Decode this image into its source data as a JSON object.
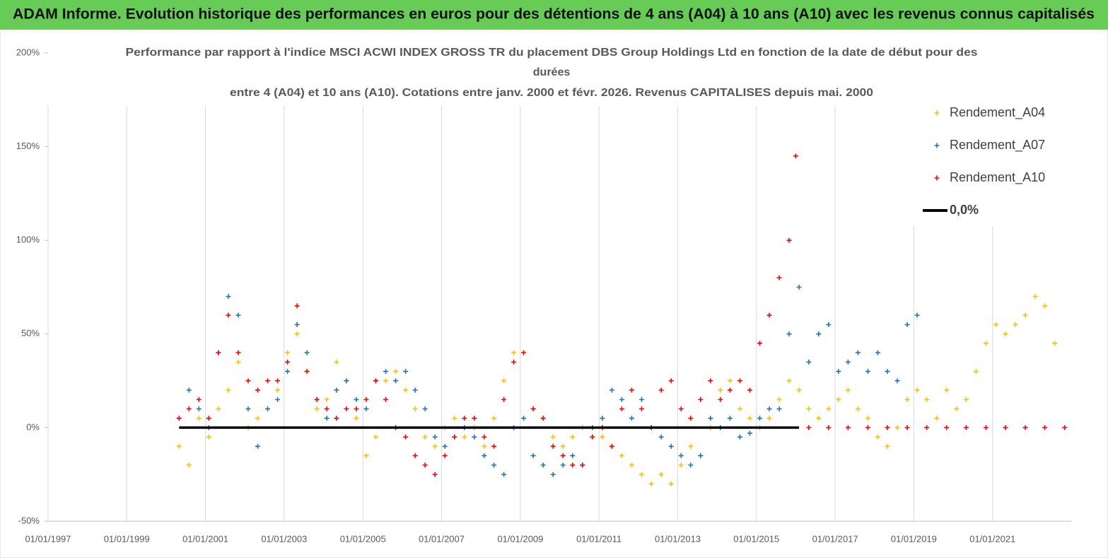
{
  "chart_data": {
    "type": "scatter",
    "title": "ADAM Informe. Evolution historique des performances en euros pour des détentions de 4 ans (A04) à 10 ans (A10) avec les revenus connus capitalisés",
    "subtitle": [
      "Performance par rapport à l'indice MSCI ACWI INDEX GROSS TR  du placement DBS Group Holdings Ltd en fonction de la date de début pour des",
      "durées",
      "entre 4 (A04) et 10 ans (A10). Cotations entre janv. 2000 et févr. 2026. Revenus CAPITALISES depuis mai. 2000"
    ],
    "xlim": [
      "1997-01-01",
      "2023-01-01"
    ],
    "xticks": [
      {
        "value": "1997-01-01",
        "label": "01/01/1997"
      },
      {
        "value": "1999-01-01",
        "label": "01/01/1999"
      },
      {
        "value": "2001-01-01",
        "label": "01/01/2001"
      },
      {
        "value": "2003-01-01",
        "label": "01/01/2003"
      },
      {
        "value": "2005-01-01",
        "label": "01/01/2005"
      },
      {
        "value": "2007-01-01",
        "label": "01/01/2007"
      },
      {
        "value": "2009-01-01",
        "label": "01/01/2009"
      },
      {
        "value": "2011-01-01",
        "label": "01/01/2011"
      },
      {
        "value": "2013-01-01",
        "label": "01/01/2013"
      },
      {
        "value": "2015-01-01",
        "label": "01/01/2015"
      },
      {
        "value": "2017-01-01",
        "label": "01/01/2017"
      },
      {
        "value": "2019-01-01",
        "label": "01/01/2019"
      },
      {
        "value": "2021-01-01",
        "label": "01/01/2021"
      }
    ],
    "ylim": [
      -50,
      200
    ],
    "yticks": [
      {
        "value": -50,
        "label": "-50%"
      },
      {
        "value": 0,
        "label": "0%"
      },
      {
        "value": 50,
        "label": "50%"
      },
      {
        "value": 100,
        "label": "100%"
      },
      {
        "value": 150,
        "label": "150%"
      },
      {
        "value": 200,
        "label": "200%"
      }
    ],
    "grid": "x",
    "series": [
      {
        "name": "Rendement_A04",
        "color": "#ffc000",
        "x": [
          "2000-05-01",
          "2000-08-01",
          "2000-11-01",
          "2001-02-01",
          "2001-05-01",
          "2001-08-01",
          "2001-11-01",
          "2002-02-01",
          "2002-05-01",
          "2002-08-01",
          "2002-11-01",
          "2003-02-01",
          "2003-05-01",
          "2003-08-01",
          "2003-11-01",
          "2004-02-01",
          "2004-05-01",
          "2004-08-01",
          "2004-11-01",
          "2005-02-01",
          "2005-05-01",
          "2005-08-01",
          "2005-11-01",
          "2006-02-01",
          "2006-05-01",
          "2006-08-01",
          "2006-11-01",
          "2007-02-01",
          "2007-05-01",
          "2007-08-01",
          "2007-11-01",
          "2008-02-01",
          "2008-05-01",
          "2008-08-01",
          "2008-11-01",
          "2009-02-01",
          "2009-05-01",
          "2009-08-01",
          "2009-11-01",
          "2010-02-01",
          "2010-05-01",
          "2010-08-01",
          "2010-11-01",
          "2011-02-01",
          "2011-05-01",
          "2011-08-01",
          "2011-11-01",
          "2012-02-01",
          "2012-05-01",
          "2012-08-01",
          "2012-11-01",
          "2013-02-01",
          "2013-05-01",
          "2013-08-01",
          "2013-11-01",
          "2014-02-01",
          "2014-05-01",
          "2014-08-01",
          "2014-11-01",
          "2015-02-01",
          "2015-05-01",
          "2015-08-01",
          "2015-11-01",
          "2016-02-01",
          "2016-05-01",
          "2016-08-01",
          "2016-11-01",
          "2017-02-01",
          "2017-05-01",
          "2017-08-01",
          "2017-11-01",
          "2018-02-01",
          "2018-05-01",
          "2018-08-01",
          "2018-11-01",
          "2019-02-01",
          "2019-05-01",
          "2019-08-01",
          "2019-11-01",
          "2020-02-01",
          "2020-05-01",
          "2020-08-01",
          "2020-11-01",
          "2021-02-01",
          "2021-05-01",
          "2021-08-01",
          "2021-11-01",
          "2022-02-01",
          "2022-05-01",
          "2022-08-01"
        ],
        "values": [
          -10,
          -20,
          5,
          -5,
          10,
          20,
          35,
          0,
          5,
          10,
          20,
          40,
          50,
          30,
          10,
          15,
          35,
          25,
          5,
          -15,
          -5,
          25,
          30,
          20,
          10,
          -5,
          -10,
          0,
          5,
          -5,
          0,
          -10,
          5,
          25,
          40,
          40,
          10,
          5,
          -5,
          -10,
          -5,
          0,
          -5,
          -5,
          -10,
          -15,
          -20,
          -25,
          -30,
          -25,
          -30,
          -20,
          -10,
          -15,
          0,
          20,
          25,
          10,
          5,
          0,
          5,
          15,
          25,
          20,
          10,
          5,
          10,
          15,
          20,
          10,
          5,
          -5,
          -10,
          0,
          15,
          20,
          15,
          5,
          20,
          10,
          15,
          30,
          45,
          55,
          50,
          55,
          60,
          70,
          65,
          45
        ]
      },
      {
        "name": "Rendement_A07",
        "color": "#1f74c2",
        "x": [
          "2000-05-01",
          "2000-08-01",
          "2000-11-01",
          "2001-02-01",
          "2001-05-01",
          "2001-08-01",
          "2001-11-01",
          "2002-02-01",
          "2002-05-01",
          "2002-08-01",
          "2002-11-01",
          "2003-02-01",
          "2003-05-01",
          "2003-08-01",
          "2003-11-01",
          "2004-02-01",
          "2004-05-01",
          "2004-08-01",
          "2004-11-01",
          "2005-02-01",
          "2005-05-01",
          "2005-08-01",
          "2005-11-01",
          "2006-02-01",
          "2006-05-01",
          "2006-08-01",
          "2006-11-01",
          "2007-02-01",
          "2007-05-01",
          "2007-08-01",
          "2007-11-01",
          "2008-02-01",
          "2008-05-01",
          "2008-08-01",
          "2008-11-01",
          "2009-02-01",
          "2009-05-01",
          "2009-08-01",
          "2009-11-01",
          "2010-02-01",
          "2010-05-01",
          "2010-08-01",
          "2010-11-01",
          "2011-02-01",
          "2011-05-01",
          "2011-08-01",
          "2011-11-01",
          "2012-02-01",
          "2012-05-01",
          "2012-08-01",
          "2012-11-01",
          "2013-02-01",
          "2013-05-01",
          "2013-08-01",
          "2013-11-01",
          "2014-02-01",
          "2014-05-01",
          "2014-08-01",
          "2014-11-01",
          "2015-02-01",
          "2015-05-01",
          "2015-08-01",
          "2015-11-01",
          "2016-02-01",
          "2016-05-01",
          "2016-08-01",
          "2016-11-01",
          "2017-02-01",
          "2017-05-01",
          "2017-08-01",
          "2017-11-01",
          "2018-02-01",
          "2018-05-01",
          "2018-08-01",
          "2018-11-01",
          "2019-02-01"
        ],
        "values": [
          5,
          20,
          10,
          0,
          40,
          70,
          60,
          10,
          -10,
          10,
          15,
          30,
          55,
          40,
          15,
          5,
          20,
          25,
          15,
          10,
          25,
          30,
          25,
          30,
          20,
          10,
          -5,
          -10,
          -5,
          0,
          -5,
          -15,
          -20,
          -25,
          0,
          5,
          -15,
          -20,
          -25,
          -20,
          -15,
          -20,
          0,
          5,
          20,
          15,
          5,
          15,
          0,
          -5,
          -10,
          -15,
          -20,
          -15,
          5,
          0,
          5,
          -5,
          -3,
          5,
          10,
          10,
          50,
          75,
          35,
          50,
          55,
          30,
          35,
          40,
          30,
          40,
          30,
          25,
          55,
          60
        ]
      },
      {
        "name": "Rendement_A10",
        "color": "#ff0000",
        "x": [
          "2000-05-01",
          "2000-08-01",
          "2000-11-01",
          "2001-02-01",
          "2001-05-01",
          "2001-08-01",
          "2001-11-01",
          "2002-02-01",
          "2002-05-01",
          "2002-08-01",
          "2002-11-01",
          "2003-02-01",
          "2003-05-01",
          "2003-08-01",
          "2003-11-01",
          "2004-02-01",
          "2004-05-01",
          "2004-08-01",
          "2004-11-01",
          "2005-02-01",
          "2005-05-01",
          "2005-08-01",
          "2005-11-01",
          "2006-02-01",
          "2006-05-01",
          "2006-08-01",
          "2006-11-01",
          "2007-02-01",
          "2007-05-01",
          "2007-08-01",
          "2007-11-01",
          "2008-02-01",
          "2008-05-01",
          "2008-08-01",
          "2008-11-01",
          "2009-02-01",
          "2009-05-01",
          "2009-08-01",
          "2009-11-01",
          "2010-02-01",
          "2010-05-01",
          "2010-08-01",
          "2010-11-01",
          "2011-02-01",
          "2011-05-01",
          "2011-08-01",
          "2011-11-01",
          "2012-02-01",
          "2012-05-01",
          "2012-08-01",
          "2012-11-01",
          "2013-02-01",
          "2013-05-01",
          "2013-08-01",
          "2013-11-01",
          "2014-02-01",
          "2014-05-01",
          "2014-08-01",
          "2014-11-01",
          "2015-02-01",
          "2015-05-01",
          "2015-08-01",
          "2015-11-01",
          "2016-01-01",
          "2016-05-01",
          "2016-11-01",
          "2017-05-01",
          "2017-11-01",
          "2018-05-01",
          "2018-11-01",
          "2019-05-01",
          "2019-11-01",
          "2020-05-01",
          "2020-11-01",
          "2021-05-01",
          "2021-11-01",
          "2022-05-01",
          "2022-11-01"
        ],
        "values": [
          5,
          10,
          15,
          5,
          40,
          60,
          40,
          25,
          20,
          25,
          25,
          35,
          65,
          30,
          15,
          10,
          5,
          10,
          10,
          15,
          25,
          15,
          0,
          -5,
          -15,
          -20,
          -25,
          -15,
          -5,
          5,
          5,
          -5,
          -10,
          15,
          35,
          40,
          10,
          5,
          -10,
          -15,
          -20,
          -20,
          -5,
          0,
          -10,
          10,
          20,
          10,
          0,
          20,
          25,
          10,
          5,
          15,
          25,
          15,
          20,
          25,
          20,
          45,
          60,
          80,
          100,
          145,
          0,
          0,
          0,
          0,
          0,
          0,
          0,
          0,
          0,
          0,
          0,
          0,
          0,
          0
        ]
      },
      {
        "name": "0,0%",
        "color": "#000000",
        "line": true,
        "x": [
          "2000-05-01",
          "2016-02-01"
        ],
        "values": [
          0,
          0
        ]
      }
    ]
  }
}
